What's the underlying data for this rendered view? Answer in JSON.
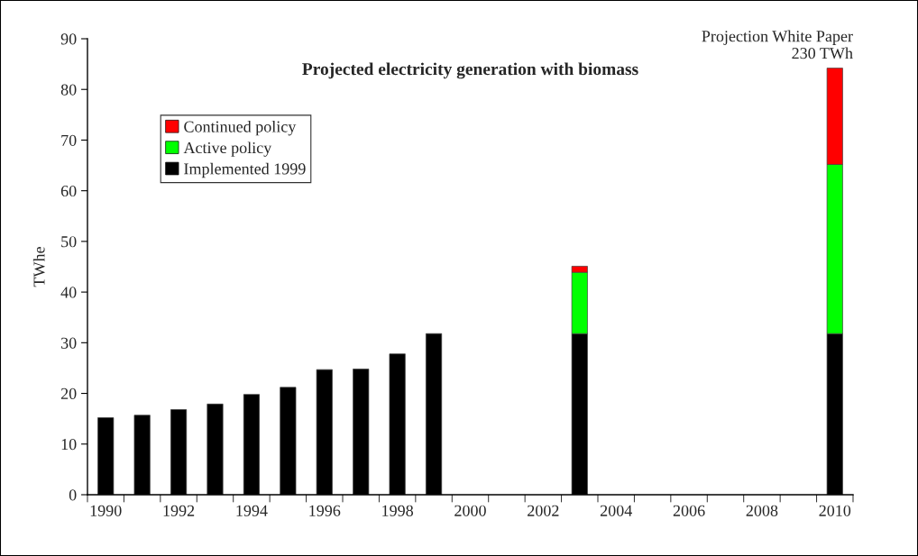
{
  "chart_data": {
    "type": "bar",
    "title": "Projected electricity generation with biomass",
    "ylabel": "TWhe",
    "categories": [
      "1990",
      null,
      "1992",
      null,
      "1994",
      null,
      "1996",
      null,
      "1998",
      null,
      "2000",
      null,
      "2002",
      null,
      "2004",
      null,
      "2006",
      null,
      "2008",
      null,
      "2010"
    ],
    "stacked": true,
    "series": [
      {
        "name": "Implemented 1999",
        "color": "#000000",
        "values": [
          15.2,
          15.7,
          16.8,
          17.9,
          19.8,
          21.2,
          24.7,
          24.8,
          27.8,
          31.8,
          null,
          null,
          null,
          31.8,
          null,
          null,
          null,
          null,
          null,
          null,
          31.8
        ]
      },
      {
        "name": "Active policy",
        "color": "#00ff00",
        "values": [
          null,
          null,
          null,
          null,
          null,
          null,
          null,
          null,
          null,
          null,
          null,
          null,
          null,
          12.1,
          null,
          null,
          null,
          null,
          null,
          null,
          33.4
        ]
      },
      {
        "name": "Continued policy",
        "color": "#ff0000",
        "values": [
          null,
          null,
          null,
          null,
          null,
          null,
          null,
          null,
          null,
          null,
          null,
          null,
          null,
          1.2,
          null,
          null,
          null,
          null,
          null,
          null,
          19
        ]
      }
    ],
    "annotations": [
      {
        "text": "Projection White Paper\n230 TWh",
        "x": "2010",
        "y": 84.2
      }
    ],
    "ylim": [
      0,
      90
    ],
    "yticks": [
      0,
      10,
      20,
      30,
      40,
      50,
      60,
      70,
      80,
      90
    ],
    "grid": false,
    "legend": "top left"
  }
}
